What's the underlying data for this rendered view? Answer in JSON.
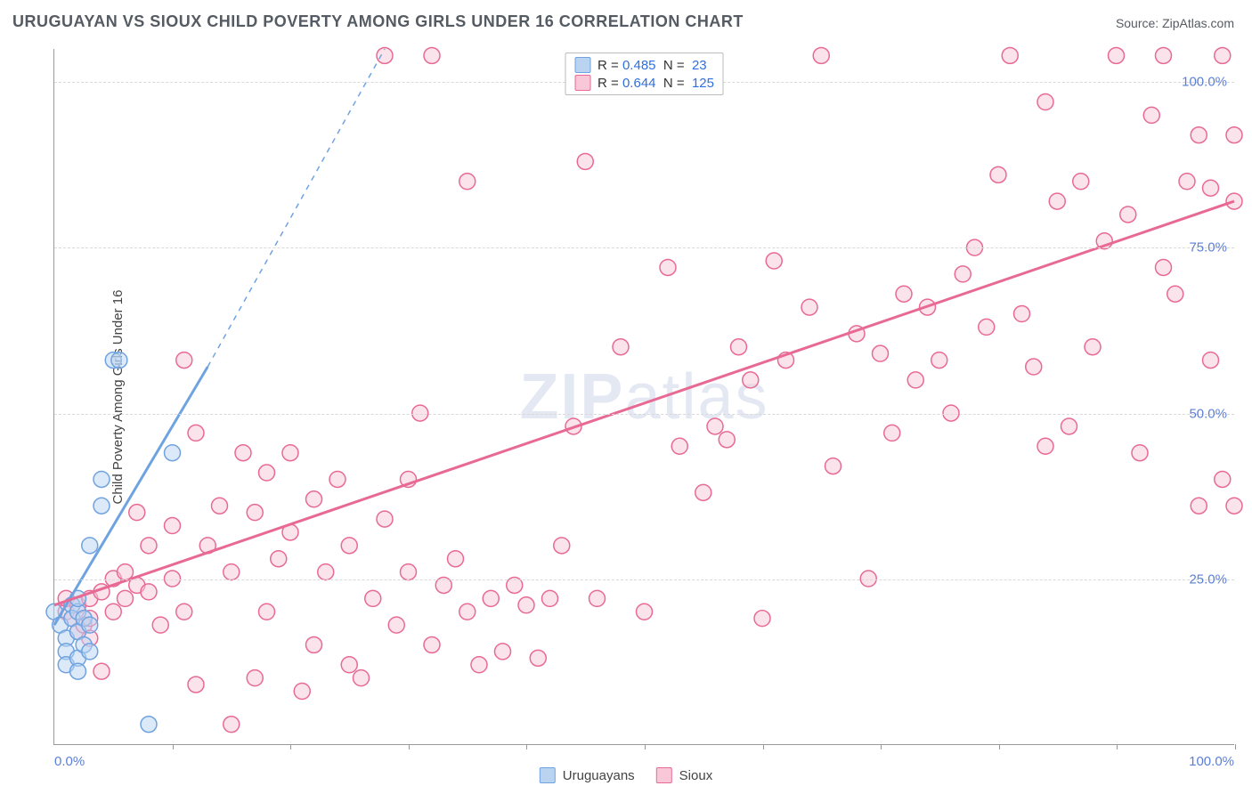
{
  "title": "URUGUAYAN VS SIOUX CHILD POVERTY AMONG GIRLS UNDER 16 CORRELATION CHART",
  "source_label": "Source: ZipAtlas.com",
  "ylabel": "Child Poverty Among Girls Under 16",
  "watermark": {
    "bold": "ZIP",
    "light": "atlas"
  },
  "xlim": [
    0,
    100
  ],
  "ylim": [
    0,
    105
  ],
  "y_ticks": [
    25,
    50,
    75,
    100
  ],
  "y_tick_labels": [
    "25.0%",
    "50.0%",
    "75.0%",
    "100.0%"
  ],
  "x_tick_marks": [
    10,
    20,
    30,
    40,
    50,
    60,
    70,
    80,
    90,
    100
  ],
  "x_tick_labels": {
    "min": "0.0%",
    "max": "100.0%"
  },
  "background_color": "#ffffff",
  "grid_color": "#d9d9d9",
  "axis_color": "#999999",
  "marker_radius": 9,
  "marker_stroke_width": 1.5,
  "marker_fill_opacity": 0.25,
  "trend_line_width": 3,
  "series": [
    {
      "name": "Uruguayans",
      "color": "#6fa3e0",
      "fill": "#b9d3f1",
      "stats": {
        "R": "0.485",
        "N": "23"
      },
      "trend": {
        "x1": 0,
        "y1": 18,
        "x2": 13,
        "y2": 57,
        "extend_x": 28,
        "extend_y": 105
      },
      "points": [
        [
          0,
          20
        ],
        [
          0.5,
          18
        ],
        [
          1,
          16
        ],
        [
          1,
          14
        ],
        [
          1,
          12
        ],
        [
          1.5,
          21
        ],
        [
          1.5,
          19
        ],
        [
          2,
          20
        ],
        [
          2,
          22
        ],
        [
          2,
          17
        ],
        [
          2,
          13
        ],
        [
          2,
          11
        ],
        [
          2.5,
          15
        ],
        [
          2.5,
          19
        ],
        [
          3,
          18
        ],
        [
          3,
          30
        ],
        [
          3,
          14
        ],
        [
          4,
          36
        ],
        [
          4,
          40
        ],
        [
          5,
          58
        ],
        [
          5.5,
          58
        ],
        [
          8,
          3
        ],
        [
          10,
          44
        ]
      ]
    },
    {
      "name": "Sioux",
      "color": "#e86a94",
      "fill": "#f8c8d8",
      "stats": {
        "R": "0.644",
        "N": "125"
      },
      "trend": {
        "x1": 0,
        "y1": 21,
        "x2": 100,
        "y2": 82
      },
      "points": [
        [
          1,
          20
        ],
        [
          1,
          22
        ],
        [
          1.5,
          19
        ],
        [
          2,
          17
        ],
        [
          2,
          21
        ],
        [
          2.5,
          18
        ],
        [
          3,
          16
        ],
        [
          3,
          22
        ],
        [
          3,
          19
        ],
        [
          4,
          23
        ],
        [
          4,
          11
        ],
        [
          5,
          20
        ],
        [
          5,
          25
        ],
        [
          6,
          26
        ],
        [
          6,
          22
        ],
        [
          7,
          24
        ],
        [
          7,
          35
        ],
        [
          8,
          23
        ],
        [
          8,
          30
        ],
        [
          9,
          18
        ],
        [
          10,
          33
        ],
        [
          10,
          25
        ],
        [
          11,
          58
        ],
        [
          11,
          20
        ],
        [
          12,
          9
        ],
        [
          12,
          47
        ],
        [
          13,
          30
        ],
        [
          14,
          36
        ],
        [
          15,
          26
        ],
        [
          15,
          3
        ],
        [
          16,
          44
        ],
        [
          17,
          10
        ],
        [
          17,
          35
        ],
        [
          18,
          41
        ],
        [
          18,
          20
        ],
        [
          19,
          28
        ],
        [
          20,
          32
        ],
        [
          20,
          44
        ],
        [
          21,
          8
        ],
        [
          22,
          15
        ],
        [
          22,
          37
        ],
        [
          23,
          26
        ],
        [
          24,
          40
        ],
        [
          25,
          12
        ],
        [
          25,
          30
        ],
        [
          26,
          10
        ],
        [
          27,
          22
        ],
        [
          28,
          34
        ],
        [
          28,
          104
        ],
        [
          29,
          18
        ],
        [
          30,
          40
        ],
        [
          30,
          26
        ],
        [
          31,
          50
        ],
        [
          32,
          15
        ],
        [
          32,
          104
        ],
        [
          33,
          24
        ],
        [
          34,
          28
        ],
        [
          35,
          20
        ],
        [
          35,
          85
        ],
        [
          36,
          12
        ],
        [
          37,
          22
        ],
        [
          38,
          14
        ],
        [
          39,
          24
        ],
        [
          40,
          21
        ],
        [
          41,
          13
        ],
        [
          42,
          22
        ],
        [
          43,
          30
        ],
        [
          44,
          48
        ],
        [
          45,
          88
        ],
        [
          46,
          22
        ],
        [
          48,
          60
        ],
        [
          50,
          20
        ],
        [
          52,
          72
        ],
        [
          53,
          45
        ],
        [
          55,
          38
        ],
        [
          56,
          48
        ],
        [
          57,
          46
        ],
        [
          58,
          60
        ],
        [
          59,
          55
        ],
        [
          60,
          19
        ],
        [
          61,
          73
        ],
        [
          62,
          58
        ],
        [
          64,
          66
        ],
        [
          65,
          104
        ],
        [
          66,
          42
        ],
        [
          68,
          62
        ],
        [
          69,
          25
        ],
        [
          70,
          59
        ],
        [
          71,
          47
        ],
        [
          72,
          68
        ],
        [
          73,
          55
        ],
        [
          74,
          66
        ],
        [
          75,
          58
        ],
        [
          76,
          50
        ],
        [
          77,
          71
        ],
        [
          78,
          75
        ],
        [
          79,
          63
        ],
        [
          80,
          86
        ],
        [
          81,
          104
        ],
        [
          82,
          65
        ],
        [
          83,
          57
        ],
        [
          84,
          97
        ],
        [
          84,
          45
        ],
        [
          85,
          82
        ],
        [
          86,
          48
        ],
        [
          87,
          85
        ],
        [
          88,
          60
        ],
        [
          89,
          76
        ],
        [
          90,
          104
        ],
        [
          91,
          80
        ],
        [
          92,
          44
        ],
        [
          93,
          95
        ],
        [
          94,
          72
        ],
        [
          94,
          104
        ],
        [
          95,
          68
        ],
        [
          96,
          85
        ],
        [
          97,
          36
        ],
        [
          97,
          92
        ],
        [
          98,
          58
        ],
        [
          98,
          84
        ],
        [
          99,
          104
        ],
        [
          99,
          40
        ],
        [
          100,
          82
        ],
        [
          100,
          92
        ],
        [
          100,
          36
        ]
      ]
    }
  ],
  "legend_top": {
    "rows": [
      {
        "series_index": 0
      },
      {
        "series_index": 1
      }
    ]
  },
  "legend_bottom": [
    {
      "series_index": 0
    },
    {
      "series_index": 1
    }
  ]
}
